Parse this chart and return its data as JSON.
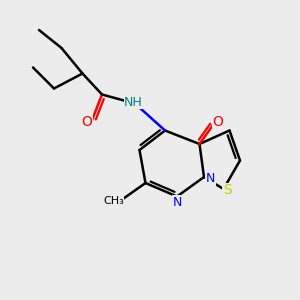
{
  "background_color": "#ececec",
  "bond_color": "#000000",
  "atom_colors": {
    "O": "#ff0000",
    "N": "#0000ff",
    "S": "#cccc00",
    "H": "#008080",
    "C": "#000000"
  },
  "figsize": [
    3.0,
    3.0
  ],
  "dpi": 100
}
